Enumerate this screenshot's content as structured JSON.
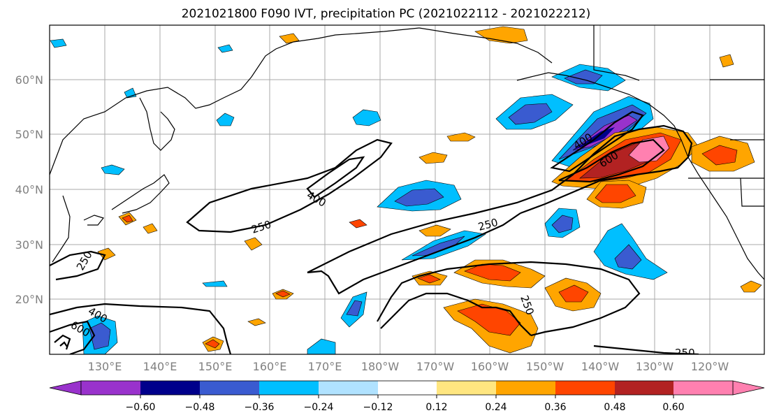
{
  "title": "2021021800 F090 IVT, precipitation PC (2021022112 - 2021022212)",
  "lat_labels": [
    "60°N",
    "50°N",
    "40°N",
    "30°N",
    "20°N"
  ],
  "lon_labels": [
    "130°E",
    "140°E",
    "150°E",
    "160°E",
    "170°E",
    "180°W",
    "170°W",
    "160°W",
    "150°W",
    "140°W",
    "130°W",
    "120°W"
  ],
  "ivt_contour_labels": [
    "250",
    "400",
    "600"
  ],
  "colorbar": {
    "ticks": [
      "−0.60",
      "−0.48",
      "−0.36",
      "−0.24",
      "−0.12",
      "0.12",
      "0.24",
      "0.36",
      "0.48",
      "0.60"
    ],
    "colors": [
      "#9932cc",
      "#00008b",
      "#3a5bd0",
      "#00bfff",
      "#b0e2ff",
      "#ffffff",
      "#ffe680",
      "#ffa500",
      "#ff4500",
      "#b22222",
      "#ff80b0"
    ]
  }
}
